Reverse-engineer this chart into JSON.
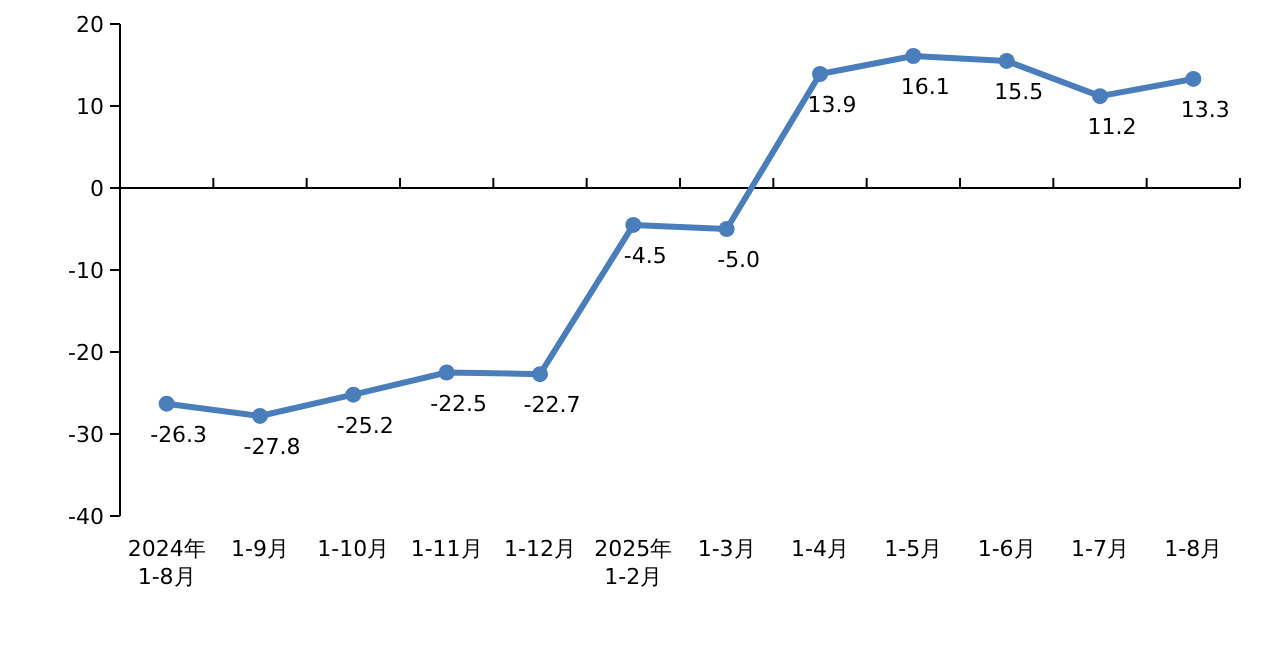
{
  "chart_data": {
    "type": "line",
    "categories": [
      "2024年\n1-8月",
      "1-9月",
      "1-10月",
      "1-11月",
      "1-12月",
      "2025年\n1-2月",
      "1-3月",
      "1-4月",
      "1-5月",
      "1-6月",
      "1-7月",
      "1-8月"
    ],
    "series": [
      {
        "color": "#4a7ebb",
        "values": [
          -26.3,
          -27.8,
          -25.2,
          -22.5,
          -22.7,
          -4.5,
          -5.0,
          13.9,
          16.1,
          15.5,
          11.2,
          13.3
        ],
        "value_labels": [
          "-26.3",
          "-27.8",
          "-25.2",
          "-22.5",
          "-22.7",
          "-4.5",
          "-5.0",
          "13.9",
          "16.1",
          "15.5",
          "11.2",
          "13.3"
        ]
      }
    ],
    "ylim": [
      -40,
      20
    ],
    "yticks": [
      -40,
      -30,
      -20,
      -10,
      0,
      10,
      20
    ],
    "marker": "circle",
    "line_style": "solid"
  }
}
